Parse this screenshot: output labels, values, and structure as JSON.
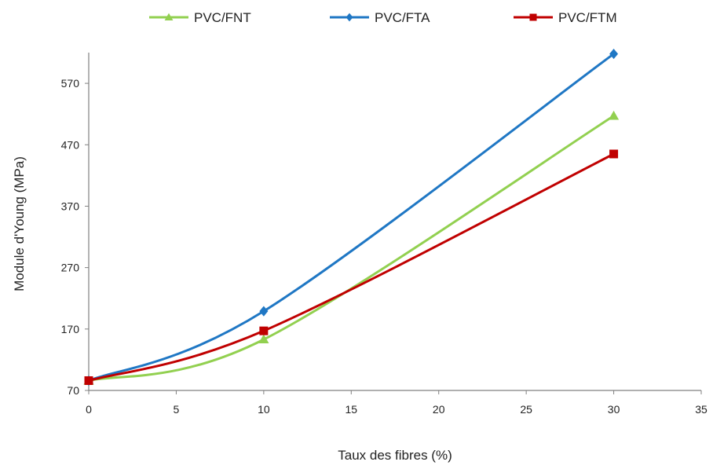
{
  "chart_data": {
    "type": "line",
    "xlabel": "Taux des fibres (%)",
    "ylabel": "Module d'Young (MPa)",
    "xlim": [
      0,
      35
    ],
    "ylim": [
      70,
      620
    ],
    "x_ticks": [
      0,
      5,
      10,
      15,
      20,
      25,
      30,
      35
    ],
    "y_ticks": [
      70,
      170,
      270,
      370,
      470,
      570
    ],
    "grid": false,
    "legend_position": "top",
    "x": [
      0,
      10,
      30
    ],
    "series": [
      {
        "name": "PVC/FNT",
        "values": [
          86,
          153,
          517
        ],
        "color": "#92d050",
        "marker": "triangle"
      },
      {
        "name": "PVC/FTA",
        "values": [
          86,
          199,
          618
        ],
        "color": "#1f77c4",
        "marker": "diamond"
      },
      {
        "name": "PVC/FTM",
        "values": [
          86,
          167,
          455
        ],
        "color": "#c00000",
        "marker": "square"
      }
    ]
  }
}
